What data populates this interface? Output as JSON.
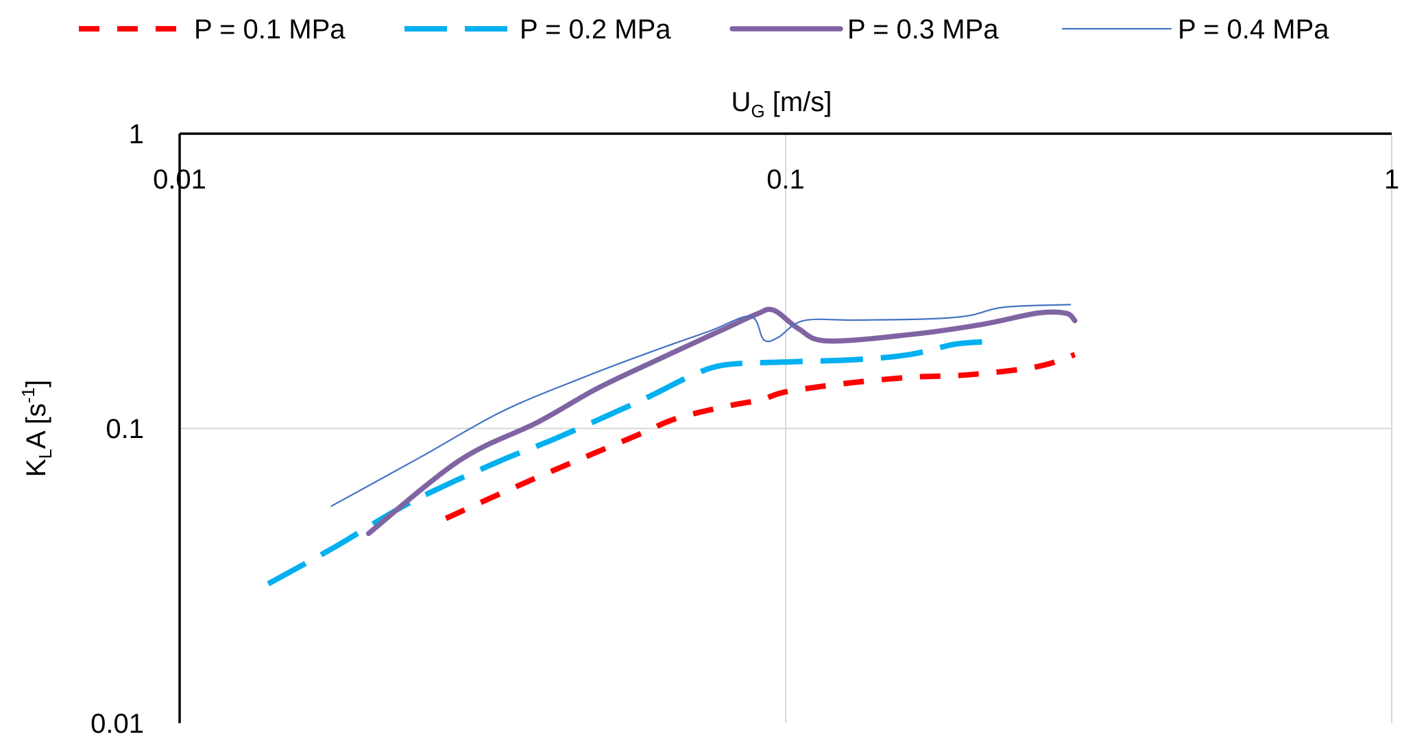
{
  "chart_data": {
    "type": "line",
    "title": "",
    "xlabel": {
      "main": "U",
      "sub": "G",
      "tail": " [m/s]"
    },
    "ylabel": {
      "main": "K",
      "sub": "L",
      "mid": "A [s",
      "sup": "-1",
      "tail": "]"
    },
    "xscale": "log",
    "yscale": "log",
    "xlim": [
      0.01,
      1
    ],
    "ylim": [
      0.01,
      1
    ],
    "x_axis_position": "top",
    "x_ticks": [
      0.01,
      0.1,
      1
    ],
    "x_tick_labels": [
      "0.01",
      "0.1",
      "1"
    ],
    "y_ticks": [
      0.01,
      0.1,
      1
    ],
    "y_tick_labels": [
      "0.01",
      "0.1",
      "1"
    ],
    "grid": true,
    "legend_position": "top",
    "series": [
      {
        "name": "P = 0.1 MPa",
        "color": "#ff0000",
        "style": "short-dash",
        "x": [
          0.0275,
          0.035,
          0.044,
          0.057,
          0.066,
          0.08,
          0.091,
          0.1,
          0.125,
          0.16,
          0.2,
          0.26,
          0.3
        ],
        "y": [
          0.0495,
          0.062,
          0.076,
          0.095,
          0.108,
          0.119,
          0.125,
          0.133,
          0.142,
          0.149,
          0.152,
          0.162,
          0.178
        ]
      },
      {
        "name": "P = 0.2 MPa",
        "color": "#00b0f0",
        "style": "long-dash",
        "x": [
          0.014,
          0.018,
          0.024,
          0.033,
          0.042,
          0.058,
          0.069,
          0.079,
          0.1,
          0.13,
          0.16,
          0.19,
          0.215
        ],
        "y": [
          0.0297,
          0.0395,
          0.056,
          0.076,
          0.093,
          0.125,
          0.149,
          0.164,
          0.168,
          0.171,
          0.178,
          0.193,
          0.197
        ]
      },
      {
        "name": "P = 0.3 MPa",
        "color": "#8064a2",
        "style": "thick-solid",
        "x": [
          0.0205,
          0.029,
          0.039,
          0.049,
          0.063,
          0.079,
          0.0895,
          0.0955,
          0.105,
          0.117,
          0.16,
          0.21,
          0.26,
          0.29,
          0.3
        ],
        "y": [
          0.044,
          0.078,
          0.105,
          0.137,
          0.175,
          0.217,
          0.244,
          0.252,
          0.218,
          0.198,
          0.208,
          0.225,
          0.246,
          0.246,
          0.232
        ]
      },
      {
        "name": "P = 0.4 MPa",
        "color": "#4472c4",
        "style": "thin-solid",
        "x": [
          0.0178,
          0.025,
          0.034,
          0.046,
          0.06,
          0.075,
          0.0875,
          0.092,
          0.097,
          0.107,
          0.13,
          0.17,
          0.2,
          0.23,
          0.295
        ],
        "y": [
          0.0545,
          0.08,
          0.114,
          0.148,
          0.182,
          0.214,
          0.24,
          0.2,
          0.203,
          0.232,
          0.233,
          0.235,
          0.241,
          0.258,
          0.263
        ]
      }
    ]
  }
}
